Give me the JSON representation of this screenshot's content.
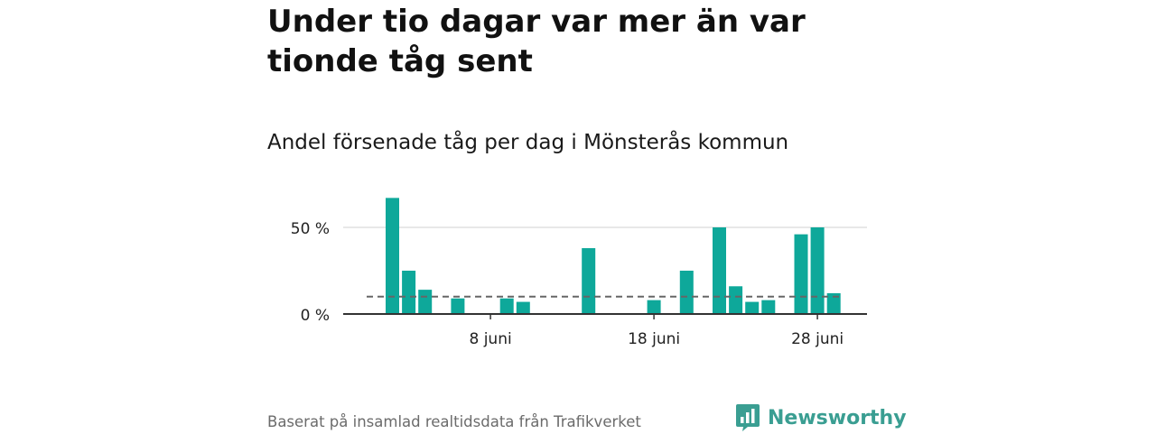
{
  "headline": "Under tio dagar var mer än var tionde tåg sent",
  "subtitle": "Andel försenade tåg per dag i Mönsterås kommun",
  "source": "Baserat på insamlad realtidsdata från Trafikverket",
  "brand": {
    "name": "Newsworthy",
    "icon": "newsworthy-logo-icon",
    "color": "#3a9e92"
  },
  "chart_data": {
    "type": "bar",
    "title": "",
    "xlabel": "",
    "ylabel": "",
    "unit": "%",
    "bar_color": "#0ea89a",
    "reference_line": {
      "value": 10,
      "style": "dashed",
      "color": "#666666"
    },
    "ylim": [
      0,
      70
    ],
    "yticks": [
      {
        "value": 0,
        "label": "0 %"
      },
      {
        "value": 50,
        "label": "50 %"
      }
    ],
    "xticks": [
      {
        "day": 8,
        "label": "8 juni"
      },
      {
        "day": 18,
        "label": "18 juni"
      },
      {
        "day": 28,
        "label": "28 juni"
      }
    ],
    "grid": "horizontal at 50 %",
    "x": [
      "2021-06-02",
      "2021-06-03",
      "2021-06-04",
      "2021-06-05",
      "2021-06-06",
      "2021-06-07",
      "2021-06-08",
      "2021-06-09",
      "2021-06-10",
      "2021-06-11",
      "2021-06-12",
      "2021-06-13",
      "2021-06-14",
      "2021-06-15",
      "2021-06-16",
      "2021-06-17",
      "2021-06-18",
      "2021-06-19",
      "2021-06-20",
      "2021-06-21",
      "2021-06-22",
      "2021-06-23",
      "2021-06-24",
      "2021-06-25",
      "2021-06-26",
      "2021-06-27",
      "2021-06-28",
      "2021-06-29"
    ],
    "values": [
      67,
      25,
      14,
      0,
      9,
      0,
      0,
      9,
      7,
      0,
      0,
      0,
      38,
      0,
      0,
      0,
      8,
      0,
      25,
      0,
      50,
      16,
      7,
      8,
      0,
      46,
      50,
      12
    ]
  }
}
